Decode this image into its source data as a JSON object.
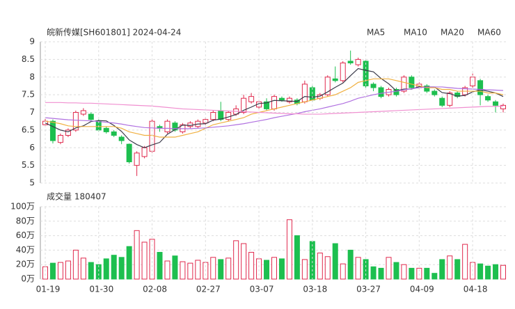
{
  "chart_data": [
    {
      "type": "candlestick",
      "title": "皖新传媒[SH601801] 2024-04-24",
      "up_color": "#e0284c",
      "down_color": "#1dbf4f",
      "ylim": [
        5,
        9
      ],
      "yticks": [
        5,
        5.5,
        6,
        6.5,
        7,
        7.5,
        8,
        8.5,
        9
      ],
      "grid": true,
      "open": [
        6.65,
        6.75,
        6.15,
        6.35,
        6.5,
        6.95,
        6.95,
        6.75,
        6.55,
        6.45,
        6.3,
        6.1,
        5.5,
        5.75,
        5.9,
        6.6,
        6.45,
        6.7,
        6.45,
        6.6,
        6.6,
        6.7,
        6.8,
        7.05,
        6.8,
        6.95,
        7.0,
        7.3,
        7.15,
        7.3,
        7.1,
        7.4,
        7.3,
        7.35,
        7.3,
        7.7,
        7.4,
        7.5,
        7.95,
        7.9,
        8.45,
        8.35,
        8.45,
        7.8,
        7.7,
        7.5,
        7.65,
        7.6,
        8.0,
        7.7,
        7.75,
        7.6,
        7.4,
        7.2,
        7.55,
        7.5,
        7.75,
        7.9,
        7.45,
        7.3,
        7.1
      ],
      "high": [
        6.82,
        6.8,
        6.4,
        6.55,
        7.05,
        7.12,
        7.0,
        6.8,
        6.6,
        6.5,
        6.35,
        6.12,
        5.9,
        6.05,
        6.8,
        6.65,
        6.8,
        6.75,
        6.7,
        6.75,
        6.8,
        6.85,
        7.05,
        7.3,
        7.05,
        7.2,
        7.5,
        7.55,
        7.35,
        7.4,
        7.5,
        7.45,
        7.45,
        7.4,
        7.9,
        7.75,
        7.55,
        8.05,
        8.3,
        8.45,
        8.75,
        8.55,
        8.5,
        7.85,
        7.75,
        7.7,
        7.7,
        8.05,
        8.05,
        7.85,
        7.8,
        7.65,
        7.45,
        7.6,
        7.6,
        7.75,
        8.1,
        7.95,
        7.5,
        7.35,
        7.25
      ],
      "low": [
        6.58,
        6.12,
        6.1,
        6.3,
        6.45,
        6.9,
        6.75,
        6.45,
        6.4,
        6.3,
        6.1,
        5.55,
        5.2,
        5.7,
        5.85,
        6.45,
        6.4,
        6.45,
        6.4,
        6.55,
        6.55,
        6.65,
        6.75,
        6.75,
        6.75,
        6.9,
        6.95,
        7.25,
        7.1,
        7.05,
        7.05,
        7.3,
        7.25,
        7.2,
        7.25,
        7.3,
        7.35,
        7.45,
        7.85,
        7.85,
        8.35,
        8.3,
        7.7,
        7.6,
        7.4,
        7.45,
        7.45,
        7.55,
        7.65,
        7.65,
        7.55,
        7.45,
        7.15,
        7.15,
        7.4,
        7.45,
        7.7,
        7.2,
        7.3,
        7.0,
        7.0
      ],
      "close": [
        6.75,
        6.2,
        6.35,
        6.5,
        7.0,
        7.05,
        6.8,
        6.5,
        6.45,
        6.35,
        6.2,
        5.6,
        5.85,
        6.0,
        6.75,
        6.55,
        6.75,
        6.5,
        6.65,
        6.7,
        6.75,
        6.8,
        7.0,
        6.8,
        7.0,
        7.1,
        7.4,
        7.45,
        7.3,
        7.1,
        7.45,
        7.35,
        7.4,
        7.25,
        7.8,
        7.35,
        7.5,
        8.0,
        7.9,
        8.4,
        8.4,
        8.5,
        7.75,
        7.7,
        7.45,
        7.65,
        7.5,
        8.0,
        7.7,
        7.8,
        7.6,
        7.5,
        7.2,
        7.55,
        7.45,
        7.7,
        8.0,
        7.5,
        7.35,
        7.2,
        7.2
      ],
      "series": [
        {
          "name": "MA5",
          "color": "#3a3a4a",
          "values": [
            6.7,
            6.6,
            6.5,
            6.45,
            6.56,
            6.62,
            6.74,
            6.77,
            6.76,
            6.63,
            6.46,
            6.22,
            6.09,
            6.0,
            6.08,
            6.15,
            6.38,
            6.51,
            6.64,
            6.63,
            6.67,
            6.68,
            6.78,
            6.81,
            6.87,
            6.94,
            7.06,
            7.15,
            7.25,
            7.27,
            7.34,
            7.33,
            7.32,
            7.31,
            7.45,
            7.43,
            7.46,
            7.58,
            7.71,
            7.83,
            8.04,
            8.24,
            8.19,
            8.15,
            7.96,
            7.81,
            7.61,
            7.66,
            7.66,
            7.73,
            7.72,
            7.72,
            7.56,
            7.53,
            7.46,
            7.48,
            7.58,
            7.64,
            7.6,
            7.55,
            7.45
          ]
        },
        {
          "name": "MA10",
          "color": "#f0b040",
          "values": [
            6.75,
            6.72,
            6.68,
            6.62,
            6.6,
            6.6,
            6.6,
            6.6,
            6.6,
            6.6,
            6.55,
            6.45,
            6.4,
            6.35,
            6.35,
            6.3,
            6.3,
            6.3,
            6.35,
            6.4,
            6.45,
            6.55,
            6.65,
            6.7,
            6.75,
            6.8,
            6.85,
            6.95,
            7.0,
            7.05,
            7.1,
            7.15,
            7.2,
            7.25,
            7.3,
            7.35,
            7.4,
            7.45,
            7.5,
            7.6,
            7.7,
            7.85,
            7.9,
            7.95,
            7.95,
            7.95,
            7.9,
            7.85,
            7.8,
            7.75,
            7.7,
            7.7,
            7.65,
            7.65,
            7.6,
            7.6,
            7.6,
            7.6,
            7.55,
            7.55,
            7.5
          ]
        },
        {
          "name": "MA20",
          "color": "#b070e0",
          "values": [
            6.85,
            6.83,
            6.81,
            6.79,
            6.78,
            6.77,
            6.76,
            6.74,
            6.72,
            6.7,
            6.67,
            6.63,
            6.6,
            6.57,
            6.56,
            6.55,
            6.55,
            6.54,
            6.54,
            6.54,
            6.55,
            6.56,
            6.58,
            6.6,
            6.62,
            6.65,
            6.68,
            6.72,
            6.76,
            6.8,
            6.85,
            6.89,
            6.93,
            6.97,
            7.02,
            7.06,
            7.1,
            7.15,
            7.2,
            7.25,
            7.32,
            7.4,
            7.45,
            7.5,
            7.54,
            7.57,
            7.6,
            7.64,
            7.67,
            7.7,
            7.72,
            7.72,
            7.72,
            7.7,
            7.68,
            7.67,
            7.66,
            7.65,
            7.64,
            7.63,
            7.62
          ]
        },
        {
          "name": "MA60",
          "color": "#f08fd0",
          "values": [
            7.28,
            7.28,
            7.28,
            7.27,
            7.27,
            7.26,
            7.26,
            7.25,
            7.24,
            7.23,
            7.22,
            7.21,
            7.2,
            7.19,
            7.18,
            7.16,
            7.14,
            7.12,
            7.1,
            7.09,
            7.08,
            7.07,
            7.06,
            7.05,
            7.04,
            7.03,
            7.02,
            7.01,
            7.0,
            6.99,
            6.98,
            6.97,
            6.96,
            6.96,
            6.95,
            6.95,
            6.95,
            6.96,
            6.97,
            6.98,
            6.99,
            7.0,
            7.01,
            7.02,
            7.03,
            7.04,
            7.05,
            7.06,
            7.07,
            7.08,
            7.09,
            7.1,
            7.11,
            7.12,
            7.13,
            7.14,
            7.15,
            7.16,
            7.17,
            7.17,
            7.18
          ]
        }
      ]
    },
    {
      "type": "bar",
      "title": "成交量 180407",
      "categories": [
        "01-19",
        null,
        null,
        null,
        null,
        null,
        null,
        "01-30",
        null,
        null,
        null,
        null,
        null,
        null,
        "02-08",
        null,
        null,
        null,
        null,
        null,
        null,
        "02-27",
        null,
        null,
        null,
        null,
        null,
        null,
        "03-07",
        null,
        null,
        null,
        null,
        null,
        null,
        "03-18",
        null,
        null,
        null,
        null,
        null,
        null,
        "03-27",
        null,
        null,
        null,
        null,
        null,
        null,
        "04-09",
        null,
        null,
        null,
        null,
        null,
        null,
        "04-18",
        null,
        null,
        null,
        null
      ],
      "values": [
        17,
        22,
        23,
        25,
        40,
        29,
        23,
        20,
        28,
        33,
        30,
        45,
        67,
        51,
        55,
        37,
        25,
        32,
        24,
        22,
        26,
        23,
        30,
        27,
        29,
        53,
        49,
        37,
        28,
        26,
        30,
        28,
        82,
        60,
        27,
        52,
        36,
        31,
        49,
        21,
        40,
        30,
        27,
        17,
        15,
        30,
        23,
        20,
        15,
        15,
        15,
        8,
        27,
        32,
        27,
        48,
        23,
        21,
        18,
        20,
        19
      ],
      "ylim": [
        0,
        100
      ],
      "yticks": [
        {
          "value": 0,
          "label": "0万"
        },
        {
          "value": 20,
          "label": "20万"
        },
        {
          "value": 40,
          "label": "40万"
        },
        {
          "value": 60,
          "label": "60万"
        },
        {
          "value": 80,
          "label": "80万"
        },
        {
          "value": 100,
          "label": "100万"
        }
      ],
      "grid": true
    }
  ]
}
